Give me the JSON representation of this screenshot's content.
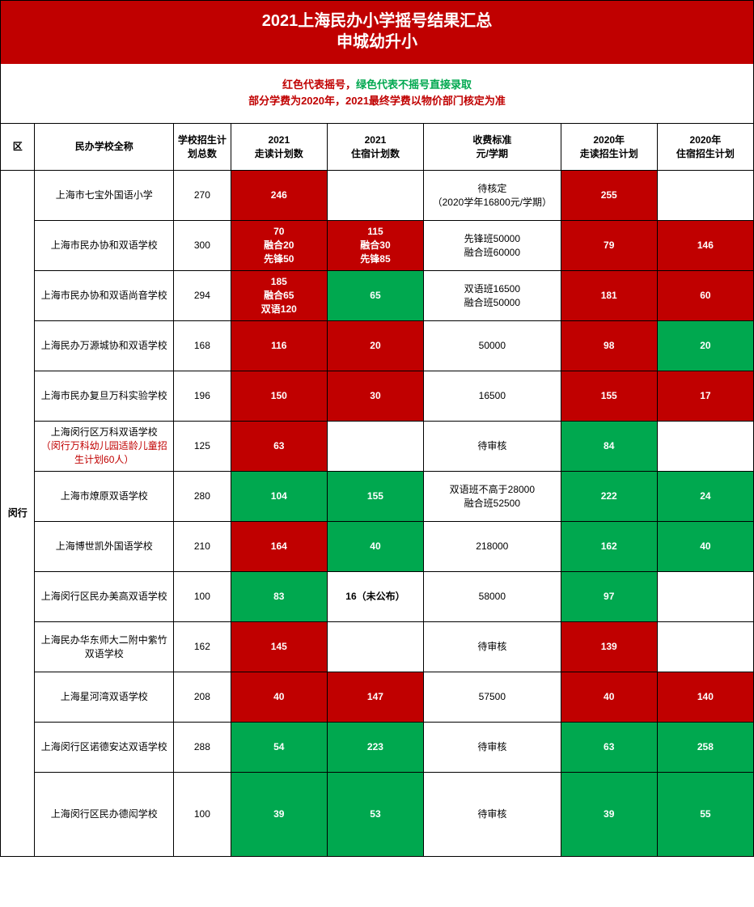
{
  "colors": {
    "header_bg": "#c00000",
    "header_fg": "#ffffff",
    "red_cell_bg": "#c00000",
    "green_cell_bg": "#00a84f",
    "cell_fg_on_color": "#ffffff",
    "border": "#000000",
    "legend_red": "#c00000",
    "legend_green": "#00a84f"
  },
  "header": {
    "line1": "2021上海民办小学摇号结果汇总",
    "line2": "申城幼升小"
  },
  "legend": {
    "part1_red": "红色代表摇号，",
    "part1_green": "绿色代表不摇号直接录取",
    "line2_red": "部分学费为2020年，2021最终学费以物价部门核定为准"
  },
  "columns": [
    "区",
    "民办学校全称",
    "学校招生计划总数",
    "2021\n走读计划数",
    "2021\n住宿计划数",
    "收费标准\n元/学期",
    "2020年\n走读招生计划",
    "2020年\n住宿招生计划"
  ],
  "district": "闵行",
  "rows": [
    {
      "school": "上海市七宝外国语小学",
      "total": "270",
      "day21": {
        "text": "246",
        "color": "red"
      },
      "board21": {
        "text": "",
        "color": "white"
      },
      "fee": "待核定\n（2020学年16800元/学期）",
      "day20": {
        "text": "255",
        "color": "red"
      },
      "board20": {
        "text": "",
        "color": "white"
      }
    },
    {
      "school": "上海市民办协和双语学校",
      "total": "300",
      "day21": {
        "text": "70\n融合20\n先锋50",
        "color": "red"
      },
      "board21": {
        "text": "115\n融合30\n先锋85",
        "color": "red"
      },
      "fee": "先锋班50000\n融合班60000",
      "day20": {
        "text": "79",
        "color": "red"
      },
      "board20": {
        "text": "146",
        "color": "red"
      }
    },
    {
      "school": "上海市民办协和双语尚音学校",
      "total": "294",
      "day21": {
        "text": "185\n融合65\n双语120",
        "color": "red"
      },
      "board21": {
        "text": "65",
        "color": "green"
      },
      "fee": "双语班16500\n融合班50000",
      "day20": {
        "text": "181",
        "color": "red"
      },
      "board20": {
        "text": "60",
        "color": "red"
      }
    },
    {
      "school": "上海民办万源城协和双语学校",
      "total": "168",
      "day21": {
        "text": "116",
        "color": "red"
      },
      "board21": {
        "text": "20",
        "color": "red"
      },
      "fee": "50000",
      "day20": {
        "text": "98",
        "color": "red"
      },
      "board20": {
        "text": "20",
        "color": "green"
      }
    },
    {
      "school": "上海市民办复旦万科实验学校",
      "total": "196",
      "day21": {
        "text": "150",
        "color": "red"
      },
      "board21": {
        "text": "30",
        "color": "red"
      },
      "fee": "16500",
      "day20": {
        "text": "155",
        "color": "red"
      },
      "board20": {
        "text": "17",
        "color": "red"
      }
    },
    {
      "school": "上海闵行区万科双语学校",
      "school_note": "（闵行万科幼儿园适龄儿童招生计划60人）",
      "total": "125",
      "day21": {
        "text": "63",
        "color": "red"
      },
      "board21": {
        "text": "",
        "color": "white"
      },
      "fee": "待审核",
      "day20": {
        "text": "84",
        "color": "green"
      },
      "board20": {
        "text": "",
        "color": "white"
      }
    },
    {
      "school": "上海市燎原双语学校",
      "total": "280",
      "day21": {
        "text": "104",
        "color": "green"
      },
      "board21": {
        "text": "155",
        "color": "green"
      },
      "fee": "双语班不高于28000\n融合班52500",
      "day20": {
        "text": "222",
        "color": "green"
      },
      "board20": {
        "text": "24",
        "color": "green"
      }
    },
    {
      "school": "上海博世凯外国语学校",
      "total": "210",
      "day21": {
        "text": "164",
        "color": "red"
      },
      "board21": {
        "text": "40",
        "color": "green"
      },
      "fee": "218000",
      "day20": {
        "text": "162",
        "color": "green"
      },
      "board20": {
        "text": "40",
        "color": "green"
      }
    },
    {
      "school": "上海闵行区民办美高双语学校",
      "total": "100",
      "day21": {
        "text": "83",
        "color": "green"
      },
      "board21": {
        "text": "16（未公布）",
        "color": "white",
        "bold": true
      },
      "fee": "58000",
      "day20": {
        "text": "97",
        "color": "green"
      },
      "board20": {
        "text": "",
        "color": "white"
      }
    },
    {
      "school": "上海民办华东师大二附中紫竹双语学校",
      "total": "162",
      "day21": {
        "text": "145",
        "color": "red"
      },
      "board21": {
        "text": "",
        "color": "white"
      },
      "fee": "待审核",
      "day20": {
        "text": "139",
        "color": "red"
      },
      "board20": {
        "text": "",
        "color": "white"
      }
    },
    {
      "school": "上海星河湾双语学校",
      "total": "208",
      "day21": {
        "text": "40",
        "color": "red"
      },
      "board21": {
        "text": "147",
        "color": "red"
      },
      "fee": "57500",
      "day20": {
        "text": "40",
        "color": "red"
      },
      "board20": {
        "text": "140",
        "color": "red"
      }
    },
    {
      "school": "上海闵行区诺德安达双语学校",
      "total": "288",
      "day21": {
        "text": "54",
        "color": "green"
      },
      "board21": {
        "text": "223",
        "color": "green"
      },
      "fee": "待审核",
      "day20": {
        "text": "63",
        "color": "green"
      },
      "board20": {
        "text": "258",
        "color": "green"
      }
    },
    {
      "school": "上海闵行区民办德闳学校",
      "total": "100",
      "tall": true,
      "day21": {
        "text": "39",
        "color": "green"
      },
      "board21": {
        "text": "53",
        "color": "green"
      },
      "fee": "待审核",
      "day20": {
        "text": "39",
        "color": "green"
      },
      "board20": {
        "text": "55",
        "color": "green"
      }
    }
  ]
}
